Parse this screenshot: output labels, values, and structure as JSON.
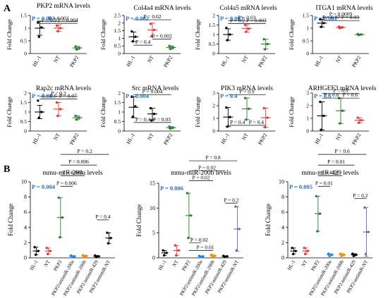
{
  "panels": [
    {
      "letter": "A"
    },
    {
      "letter": "B"
    }
  ],
  "chart_data": [
    {
      "type": "scatter",
      "panel": "A",
      "title": "PKP2 mRNA levels",
      "ylabel": "Fold Change",
      "categories": [
        "HL-1",
        "NT",
        "PKP2"
      ],
      "ylim": [
        0,
        1.5
      ],
      "yticks": [
        "0",
        "0.5",
        "1",
        "1.5"
      ],
      "overall_p": "P = 0.002",
      "series": [
        {
          "group": "HL-1",
          "color": "#000000",
          "mean": 1.0,
          "err": 0.28,
          "points": [
            1.22,
            1.03,
            0.66
          ]
        },
        {
          "group": "NT",
          "color": "#e53935",
          "mean": 1.0,
          "err": 0.12,
          "points": [
            1.1,
            1.0,
            0.88
          ]
        },
        {
          "group": "PKP2",
          "color": "#2e7d32",
          "mean": 0.22,
          "err": 0.06,
          "points": [
            0.28,
            0.22,
            0.16
          ]
        }
      ],
      "comparisons": [
        {
          "label": "P = 0.003",
          "from": 0,
          "to": 2,
          "y": 1.27
        },
        {
          "label": "P = 0.9",
          "from": 0,
          "to": 1,
          "y": 1.19
        },
        {
          "label": "P = 0.004",
          "from": 1,
          "to": 2,
          "y": 1.19
        }
      ]
    },
    {
      "type": "scatter",
      "panel": "A",
      "title": "Col4a4 mRNA levels",
      "ylabel": "Fold Change",
      "categories": [
        "HL-1",
        "NT",
        "PKP2"
      ],
      "ylim": [
        0,
        2.5
      ],
      "yticks": [
        "0",
        "0.5",
        "1",
        "1.5",
        "2",
        "2.5"
      ],
      "overall_p": "P = 0.002",
      "series": [
        {
          "group": "HL-1",
          "color": "#000000",
          "mean": 1.1,
          "err": 0.32,
          "points": [
            1.45,
            1.1,
            0.8
          ]
        },
        {
          "group": "NT",
          "color": "#e53935",
          "mean": 1.55,
          "err": 0.45,
          "points": [
            1.95,
            1.55,
            1.15
          ]
        },
        {
          "group": "PKP2",
          "color": "#2e7d32",
          "mean": 0.4,
          "err": 0.1,
          "points": [
            0.5,
            0.4,
            0.3
          ]
        }
      ],
      "comparisons": [
        {
          "label": "P = 0.02",
          "from": 0,
          "to": 2,
          "y": 2.22
        },
        {
          "label": "P = 0.4",
          "from": 0,
          "to": 1,
          "y": 0.55,
          "below": true
        },
        {
          "label": "P = 0.002",
          "from": 1,
          "to": 2,
          "y": 0.95
        }
      ]
    },
    {
      "type": "scatter",
      "panel": "A",
      "title": "Col4a5 mRNA levels",
      "ylabel": "Fold Change",
      "categories": [
        "HL-1",
        "NT",
        "PKP2"
      ],
      "ylim": [
        0,
        2
      ],
      "yticks": [
        "0",
        "0.5",
        "1",
        "1.5",
        "2"
      ],
      "overall_p": "P = 0.003",
      "series": [
        {
          "group": "HL-1",
          "color": "#000000",
          "mean": 1.0,
          "err": 0.3,
          "points": [
            1.35,
            1.0,
            0.7
          ]
        },
        {
          "group": "NT",
          "color": "#e53935",
          "mean": 1.32,
          "err": 0.2,
          "points": [
            1.5,
            1.3,
            1.15
          ]
        },
        {
          "group": "PKP2",
          "color": "#2e7d32",
          "mean": 0.5,
          "err": 0.25,
          "points": [
            0.75,
            0.5,
            0.22
          ]
        }
      ],
      "comparisons": [
        {
          "label": "P = 0.03",
          "from": 0,
          "to": 2,
          "y": 1.72
        },
        {
          "label": "P = 0.2",
          "from": 0,
          "to": 1,
          "y": 1.57
        },
        {
          "label": "P = 0.003",
          "from": 1,
          "to": 2,
          "y": 1.57
        }
      ]
    },
    {
      "type": "scatter",
      "panel": "A",
      "title": "ITGA1 mRNA levels",
      "ylabel": "Fold Change",
      "categories": [
        "HL-1",
        "NT",
        "PKP2"
      ],
      "ylim": [
        0,
        1.5
      ],
      "yticks": [
        "0",
        "0.5",
        "1",
        "1.5"
      ],
      "overall_p": "P = 0.001",
      "series": [
        {
          "group": "HL-1",
          "color": "#000000",
          "mean": 1.2,
          "err": 0.15,
          "points": [
            1.35,
            1.2,
            1.05
          ]
        },
        {
          "group": "NT",
          "color": "#e53935",
          "mean": 1.03,
          "err": 0.03,
          "points": [
            1.06,
            1.03,
            1.0
          ]
        },
        {
          "group": "PKP2",
          "color": "#2e7d32",
          "mean": 0.75,
          "err": 0.02,
          "points": [
            0.77,
            0.75,
            0.73
          ]
        }
      ],
      "comparisons": [
        {
          "label": "P = 0.0009",
          "from": 0,
          "to": 2,
          "y": 1.43
        },
        {
          "label": "P = 0.07",
          "from": 0,
          "to": 1,
          "y": 1.3
        },
        {
          "label": "P = 0.03",
          "from": 1,
          "to": 2,
          "y": 1.3
        }
      ]
    },
    {
      "type": "scatter",
      "panel": "A",
      "title": "Rap2c mRNA levels",
      "ylabel": "Fold Change",
      "categories": [
        "HL-1",
        "NT",
        "PKP2"
      ],
      "ylim": [
        0,
        2
      ],
      "yticks": [
        "0",
        "0.5",
        "1",
        "1.5",
        "2"
      ],
      "overall_p": "P = 0.08",
      "series": [
        {
          "group": "HL-1",
          "color": "#000000",
          "mean": 1.0,
          "err": 0.35,
          "points": [
            1.6,
            1.0,
            0.7
          ]
        },
        {
          "group": "NT",
          "color": "#e53935",
          "mean": 1.15,
          "err": 0.35,
          "points": [
            1.5,
            1.15,
            0.8
          ]
        },
        {
          "group": "PKP2",
          "color": "#2e7d32",
          "mean": 0.7,
          "err": 0.1,
          "points": [
            0.8,
            0.7,
            0.6
          ]
        }
      ],
      "comparisons": [
        {
          "label": "P = 0.3",
          "from": 0,
          "to": 2,
          "y": 1.82
        },
        {
          "label": "P = 0.6",
          "from": 0,
          "to": 1,
          "y": 1.68
        },
        {
          "label": "P = 0.07",
          "from": 1,
          "to": 2,
          "y": 1.68
        }
      ]
    },
    {
      "type": "scatter",
      "panel": "A",
      "title": "Src mRNA levels",
      "ylabel": "Fold Change",
      "categories": [
        "HL-1",
        "NT",
        "PKP2"
      ],
      "ylim": [
        0,
        2
      ],
      "yticks": [
        "0",
        "0.5",
        "1",
        "1.5",
        "2"
      ],
      "overall_p": "P = 0.004",
      "series": [
        {
          "group": "HL-1",
          "color": "#000000",
          "mean": 1.25,
          "err": 0.55,
          "points": [
            1.8,
            1.3,
            0.75
          ]
        },
        {
          "group": "NT",
          "color": "#000000",
          "mean": 0.9,
          "err": 0.3,
          "points": [
            1.2,
            0.9,
            0.55
          ]
        },
        {
          "group": "PKP2",
          "color": "#2e7d32",
          "mean": 0.18,
          "err": 0.05,
          "points": [
            0.23,
            0.18,
            0.13
          ]
        }
      ],
      "comparisons": [
        {
          "label": "P = 0.004",
          "from": 0,
          "to": 2,
          "y": 1.9
        },
        {
          "label": "P = 0.4",
          "from": 0,
          "to": 1,
          "y": 0.45,
          "below": true
        },
        {
          "label": "P = 0.03",
          "from": 1,
          "to": 2,
          "y": 0.45,
          "below": true
        }
      ]
    },
    {
      "type": "scatter",
      "panel": "A",
      "title": "PIK3 mRNA levels",
      "ylabel": "Fold Change",
      "categories": [
        "HL-1",
        "NT",
        "PKP2"
      ],
      "ylim": [
        0,
        3
      ],
      "yticks": [
        "0",
        "1",
        "2",
        "3"
      ],
      "overall_p": "P = 0.4",
      "series": [
        {
          "group": "HL-1",
          "color": "#000000",
          "mean": 1.1,
          "err": 0.75,
          "points": [
            1.85,
            1.1,
            0.35
          ]
        },
        {
          "group": "NT",
          "color": "#2e7d32",
          "mean": 1.75,
          "err": 0.85,
          "points": [
            2.6,
            1.75,
            0.9
          ]
        },
        {
          "group": "PKP2",
          "color": "#e53935",
          "mean": 1.05,
          "err": 0.75,
          "points": [
            1.8,
            1.05,
            0.3
          ]
        }
      ],
      "comparisons": [
        {
          "label": "P = 0.9",
          "from": 0,
          "to": 2,
          "y": 2.85
        },
        {
          "label": "P = 0.4",
          "from": 0,
          "to": 1,
          "y": 0.45,
          "below": true
        },
        {
          "label": "P = 0.4",
          "from": 1,
          "to": 2,
          "y": 0.45,
          "below": true
        }
      ]
    },
    {
      "type": "scatter",
      "panel": "A",
      "title": "ARHGEF3 mRNA levels",
      "ylabel": "Fold Change",
      "categories": [
        "HL-1",
        "NT",
        "PKP2"
      ],
      "ylim": [
        0,
        3
      ],
      "yticks": [
        "0",
        "1",
        "2",
        "3"
      ],
      "overall_p": "P = 0.6",
      "series": [
        {
          "group": "HL-1",
          "color": "#000000",
          "mean": 1.2,
          "err": 1.1,
          "points": [
            2.3,
            1.2,
            0.1
          ]
        },
        {
          "group": "NT",
          "color": "#2e7d32",
          "mean": 1.6,
          "err": 1.0,
          "points": [
            2.6,
            1.6,
            0.6
          ]
        },
        {
          "group": "PKP2",
          "color": "#e53935",
          "mean": 0.85,
          "err": 0.2,
          "points": [
            1.05,
            0.85,
            0.65
          ]
        }
      ],
      "comparisons": [
        {
          "label": "P = 0.9",
          "from": 0,
          "to": 2,
          "y": 2.95
        },
        {
          "label": "P = 0.8",
          "from": 0,
          "to": 1,
          "y": 2.6
        },
        {
          "label": "P = 0.6",
          "from": 1,
          "to": 2,
          "y": 2.6
        }
      ]
    },
    {
      "type": "scatter",
      "panel": "B",
      "title": "mmu-miR-200a levels",
      "ylabel": "Fold Change",
      "categories": [
        "HL-1",
        "NT",
        "PKP2",
        "PKP2/antimiR-200a",
        "PKP2/antimiR-200b",
        "PKP2/antimiR-429",
        "PKP2/antimiR-NT"
      ],
      "ylim": [
        0,
        10
      ],
      "yticks": [
        "0",
        "2",
        "4",
        "6",
        "8",
        "10"
      ],
      "overall_p": "P = 0.004",
      "series": [
        {
          "group": "HL-1",
          "color": "#000000",
          "mean": 0.9,
          "err": 0.5,
          "points": [
            1.4,
            0.9,
            0.4
          ]
        },
        {
          "group": "NT",
          "color": "#e53935",
          "mean": 0.9,
          "err": 0.4,
          "points": [
            1.3,
            0.9,
            0.5
          ]
        },
        {
          "group": "PKP2",
          "color": "#2e7d32",
          "mean": 5.3,
          "err": 2.6,
          "points": [
            7.9,
            5.3,
            2.7
          ]
        },
        {
          "group": "PKP2/antimiR-200a",
          "color": "#1e88e5",
          "mean": 0.2,
          "err": 0.1,
          "points": [
            0.3,
            0.2,
            0.1
          ]
        },
        {
          "group": "PKP2/antimiR-200b",
          "color": "#fb8c00",
          "mean": 0.25,
          "err": 0.1,
          "points": [
            0.35,
            0.25,
            0.15
          ]
        },
        {
          "group": "PKP2/antimiR-429",
          "color": "#000000",
          "mean": 0.2,
          "err": 0.1,
          "points": [
            0.3,
            0.2,
            0.1
          ]
        },
        {
          "group": "PKP2/antimiR-NT",
          "color": "#000000",
          "mean": 2.6,
          "err": 0.7,
          "points": [
            3.3,
            2.6,
            1.9
          ]
        }
      ],
      "comparisons": [
        {
          "label": "P = 0.2",
          "from": 2,
          "to": 6,
          "y": 13.6
        },
        {
          "label": "P = 0.006",
          "from": 2,
          "to": 5,
          "y": 12.2
        },
        {
          "label": "P = 0.008",
          "from": 2,
          "to": 4,
          "y": 10.8
        },
        {
          "label": "P = 0.006",
          "from": 2,
          "to": 3,
          "y": 9.4
        },
        {
          "label": "P = 0.4",
          "from": 5,
          "to": 6,
          "y": 5.0
        }
      ]
    },
    {
      "type": "scatter",
      "panel": "B",
      "title": "mmu-miR-200b levels",
      "ylabel": "Fold Change",
      "categories": [
        "HL-1",
        "NT",
        "PKP2",
        "PKP2/antimiR-200a",
        "PKP2/antimiR-200b",
        "PKP2/antimiR-429",
        "PKP2/antimiR-NT"
      ],
      "ylim": [
        0,
        15
      ],
      "yticks": [
        "0",
        "5",
        "10",
        "15"
      ],
      "overall_p": "P = 0.006",
      "series": [
        {
          "group": "HL-1",
          "color": "#000000",
          "mean": 1.0,
          "err": 0.5,
          "points": [
            1.5,
            1.0,
            0.5
          ]
        },
        {
          "group": "NT",
          "color": "#e53935",
          "mean": 1.5,
          "err": 1.0,
          "points": [
            2.5,
            1.5,
            0.5
          ]
        },
        {
          "group": "PKP2",
          "color": "#2e7d32",
          "mean": 8.5,
          "err": 4.5,
          "points": [
            13.0,
            8.5,
            4.0
          ]
        },
        {
          "group": "PKP2/antimiR-200a",
          "color": "#1e88e5",
          "mean": 0.3,
          "err": 0.1,
          "points": [
            0.4,
            0.3,
            0.2
          ]
        },
        {
          "group": "PKP2/antimiR-200b",
          "color": "#fb8c00",
          "mean": 0.4,
          "err": 0.2,
          "points": [
            0.6,
            0.4,
            0.2
          ]
        },
        {
          "group": "PKP2/antimiR-429",
          "color": "#000000",
          "mean": 0.3,
          "err": 0.1,
          "points": [
            0.4,
            0.3,
            0.2
          ]
        },
        {
          "group": "PKP2/antimiR-NT",
          "color": "#7e57c2",
          "mean": 5.8,
          "err": 4.5,
          "points": [
            10.3,
            5.8,
            1.5
          ]
        }
      ],
      "comparisons": [
        {
          "label": "P = 0.8",
          "from": 2,
          "to": 6,
          "y": 19.5
        },
        {
          "label": "P = 0.02",
          "from": 2,
          "to": 5,
          "y": 17.5
        },
        {
          "label": "P = 0.02",
          "from": 2,
          "to": 4,
          "y": 15.5
        },
        {
          "label": "P = 0.02",
          "from": 2,
          "to": 3,
          "y": 3.0,
          "nudge": 1
        },
        {
          "label": "P = 0.01",
          "from": 2,
          "to": 4,
          "y": 1.5,
          "nudge": 1
        },
        {
          "label": "P = 0.2",
          "from": 5,
          "to": 6,
          "y": 11.0
        }
      ]
    },
    {
      "type": "scatter",
      "panel": "B",
      "title": "mmu-miR-429 levels",
      "ylabel": "Fold Change",
      "categories": [
        "HL-1",
        "NT",
        "PKP2",
        "PKP2/antimiR-200a",
        "PKP2/antimiR-200b",
        "PKP2/antimiR-429",
        "PKP2/antimiR-NT"
      ],
      "ylim": [
        0,
        10
      ],
      "yticks": [
        "0",
        "2",
        "4",
        "6",
        "8",
        "10"
      ],
      "overall_p": "P = 0.005",
      "series": [
        {
          "group": "HL-1",
          "color": "#000000",
          "mean": 0.9,
          "err": 0.4,
          "points": [
            1.3,
            0.9,
            0.5
          ]
        },
        {
          "group": "NT",
          "color": "#e53935",
          "mean": 0.9,
          "err": 0.4,
          "points": [
            1.3,
            0.9,
            0.5
          ]
        },
        {
          "group": "PKP2",
          "color": "#2e7d32",
          "mean": 5.8,
          "err": 2.3,
          "points": [
            8.1,
            5.8,
            3.5
          ]
        },
        {
          "group": "PKP2/antimiR-200a",
          "color": "#1e88e5",
          "mean": 0.4,
          "err": 0.15,
          "points": [
            0.55,
            0.4,
            0.25
          ]
        },
        {
          "group": "PKP2/antimiR-200b",
          "color": "#fb8c00",
          "mean": 0.4,
          "err": 0.15,
          "points": [
            0.55,
            0.4,
            0.25
          ]
        },
        {
          "group": "PKP2/antimiR-429",
          "color": "#000000",
          "mean": 0.4,
          "err": 0.15,
          "points": [
            0.55,
            0.4,
            0.25
          ]
        },
        {
          "group": "PKP2/antimiR-NT",
          "color": "#7e57c2",
          "mean": 3.4,
          "err": 3.2,
          "points": [
            6.6,
            3.4,
            0.5
          ]
        }
      ],
      "comparisons": [
        {
          "label": "P = 0.6",
          "from": 2,
          "to": 6,
          "y": 13.6
        },
        {
          "label": "P = 0.01",
          "from": 2,
          "to": 5,
          "y": 12.2
        },
        {
          "label": "P = 0.01",
          "from": 2,
          "to": 4,
          "y": 10.8
        },
        {
          "label": "P = 0.01",
          "from": 2,
          "to": 3,
          "y": 9.4
        },
        {
          "label": "P = 0.2",
          "from": 5,
          "to": 6,
          "y": 7.8
        }
      ]
    }
  ]
}
